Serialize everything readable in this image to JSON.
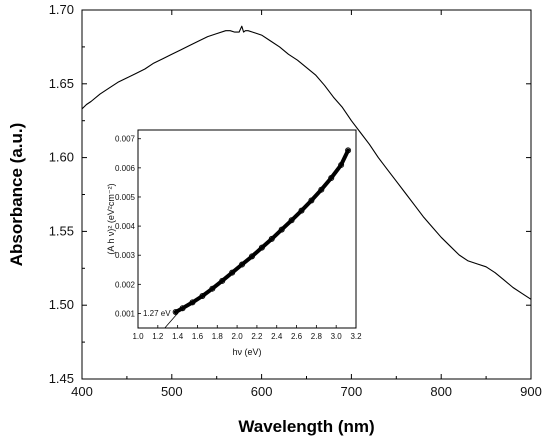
{
  "chart_data": [
    {
      "type": "line",
      "title": "",
      "xlabel": "Wavelength (nm)",
      "ylabel": "Absorbance (a.u.)",
      "xlim": [
        400,
        900
      ],
      "ylim": [
        1.45,
        1.7
      ],
      "xticks": [
        400,
        500,
        600,
        700,
        800,
        900
      ],
      "yticks": [
        1.45,
        1.5,
        1.55,
        1.6,
        1.65,
        1.7
      ],
      "ytick_labels": [
        "1.45",
        "1.50",
        "1.55",
        "1.60",
        "1.65",
        "1.70"
      ],
      "grid": false,
      "series": [
        {
          "x": [
            400,
            405,
            410,
            420,
            430,
            440,
            450,
            460,
            470,
            480,
            490,
            500,
            510,
            520,
            530,
            540,
            550,
            560,
            565,
            570,
            575,
            578,
            580,
            582,
            585,
            590,
            600,
            610,
            620,
            630,
            640,
            650,
            660,
            670,
            680,
            690,
            700,
            710,
            720,
            730,
            740,
            750,
            760,
            770,
            780,
            790,
            800,
            810,
            820,
            830,
            840,
            850,
            860,
            870,
            880,
            890,
            900
          ],
          "y": [
            1.633,
            1.636,
            1.638,
            1.643,
            1.647,
            1.651,
            1.654,
            1.657,
            1.66,
            1.664,
            1.667,
            1.67,
            1.673,
            1.676,
            1.679,
            1.682,
            1.684,
            1.686,
            1.686,
            1.685,
            1.685,
            1.689,
            1.685,
            1.686,
            1.686,
            1.685,
            1.683,
            1.679,
            1.675,
            1.67,
            1.666,
            1.661,
            1.656,
            1.649,
            1.641,
            1.634,
            1.625,
            1.617,
            1.609,
            1.6,
            1.592,
            1.584,
            1.576,
            1.568,
            1.56,
            1.553,
            1.546,
            1.54,
            1.534,
            1.53,
            1.528,
            1.526,
            1.522,
            1.517,
            1.512,
            1.508,
            1.504
          ]
        }
      ]
    },
    {
      "type": "scatter",
      "title": "",
      "xlabel": "hν (eV)",
      "ylabel": "(A h ν)² (eV²cm⁻²)",
      "xlim": [
        1.0,
        3.2
      ],
      "ylim": [
        0.0005,
        0.0073
      ],
      "xticks": [
        1.0,
        1.2,
        1.4,
        1.6,
        1.8,
        2.0,
        2.2,
        2.4,
        2.6,
        2.8,
        3.0,
        3.2
      ],
      "xtick_labels": [
        "1.0",
        "1.2",
        "1.4",
        "1.6",
        "1.8",
        "2.0",
        "2.2",
        "2.4",
        "2.6",
        "2.8",
        "3.0",
        "3.2"
      ],
      "yticks": [
        0.001,
        0.002,
        0.003,
        0.004,
        0.005,
        0.006,
        0.007
      ],
      "ytick_labels": [
        "0.001",
        "0.002",
        "0.003",
        "0.004",
        "0.005",
        "0.006",
        "0.007"
      ],
      "annotation": "1.27 eV",
      "series": [
        {
          "x": [
            1.38,
            1.45,
            1.55,
            1.65,
            1.75,
            1.85,
            1.95,
            2.05,
            2.15,
            2.25,
            2.35,
            2.45,
            2.55,
            2.65,
            2.75,
            2.85,
            2.95,
            3.05,
            3.12
          ],
          "y": [
            0.00105,
            0.00118,
            0.00138,
            0.0016,
            0.00185,
            0.00212,
            0.0024,
            0.00268,
            0.00296,
            0.00326,
            0.00356,
            0.00388,
            0.0042,
            0.00453,
            0.00488,
            0.00525,
            0.00565,
            0.0061,
            0.0066
          ]
        },
        {
          "x": [
            1.27,
            1.45
          ],
          "y": [
            0.0005,
            0.0012
          ]
        }
      ]
    }
  ]
}
